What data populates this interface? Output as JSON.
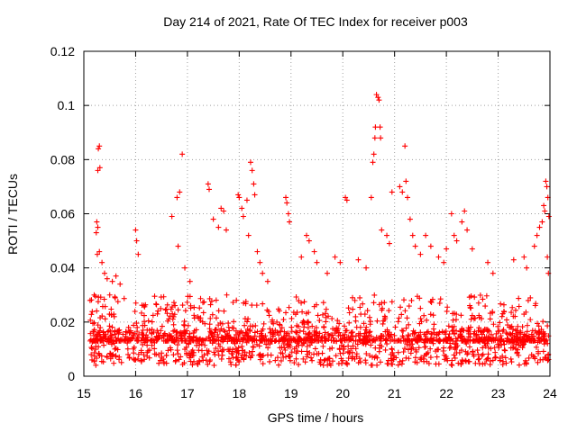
{
  "chart_data": {
    "type": "scatter",
    "title": "Day 214 of 2021, Rate Of TEC Index for receiver p003",
    "xlabel": "GPS time / hours",
    "ylabel": "ROTI / TECUs",
    "xlim": [
      15,
      24
    ],
    "ylim": [
      0,
      0.12
    ],
    "xticks": [
      "15",
      "16",
      "17",
      "18",
      "19",
      "20",
      "21",
      "22",
      "23",
      "24"
    ],
    "yticks": [
      "0",
      "0.02",
      "0.04",
      "0.06",
      "0.08",
      "0.1",
      "0.12"
    ],
    "grid": true,
    "marker": "+",
    "color": "#ff0000",
    "series": [
      {
        "name": "ROTI",
        "points": [
          [
            15.3,
            0.085
          ],
          [
            15.28,
            0.084
          ],
          [
            15.27,
            0.076
          ],
          [
            15.31,
            0.077
          ],
          [
            15.25,
            0.057
          ],
          [
            15.27,
            0.055
          ],
          [
            15.24,
            0.053
          ],
          [
            15.26,
            0.045
          ],
          [
            15.3,
            0.046
          ],
          [
            15.35,
            0.042
          ],
          [
            15.4,
            0.038
          ],
          [
            15.45,
            0.036
          ],
          [
            15.55,
            0.035
          ],
          [
            15.62,
            0.037
          ],
          [
            15.7,
            0.034
          ],
          [
            15.12,
            0.028
          ],
          [
            15.2,
            0.03
          ],
          [
            15.5,
            0.03
          ],
          [
            16.0,
            0.054
          ],
          [
            16.02,
            0.05
          ],
          [
            16.05,
            0.045
          ],
          [
            16.7,
            0.059
          ],
          [
            16.8,
            0.066
          ],
          [
            16.85,
            0.068
          ],
          [
            16.9,
            0.082
          ],
          [
            16.82,
            0.048
          ],
          [
            16.95,
            0.04
          ],
          [
            17.05,
            0.035
          ],
          [
            17.4,
            0.071
          ],
          [
            17.42,
            0.069
          ],
          [
            17.5,
            0.058
          ],
          [
            17.6,
            0.055
          ],
          [
            17.65,
            0.062
          ],
          [
            17.7,
            0.061
          ],
          [
            17.75,
            0.054
          ],
          [
            17.98,
            0.067
          ],
          [
            18.0,
            0.066
          ],
          [
            18.05,
            0.062
          ],
          [
            18.08,
            0.059
          ],
          [
            18.15,
            0.065
          ],
          [
            18.22,
            0.079
          ],
          [
            18.25,
            0.076
          ],
          [
            18.28,
            0.071
          ],
          [
            18.3,
            0.067
          ],
          [
            18.18,
            0.052
          ],
          [
            18.35,
            0.046
          ],
          [
            18.4,
            0.042
          ],
          [
            18.45,
            0.038
          ],
          [
            18.55,
            0.035
          ],
          [
            18.9,
            0.066
          ],
          [
            18.92,
            0.064
          ],
          [
            18.95,
            0.06
          ],
          [
            18.97,
            0.057
          ],
          [
            19.2,
            0.044
          ],
          [
            19.3,
            0.052
          ],
          [
            19.35,
            0.05
          ],
          [
            19.45,
            0.046
          ],
          [
            19.5,
            0.042
          ],
          [
            19.7,
            0.038
          ],
          [
            19.85,
            0.044
          ],
          [
            19.95,
            0.042
          ],
          [
            20.05,
            0.066
          ],
          [
            20.08,
            0.065
          ],
          [
            20.3,
            0.043
          ],
          [
            20.45,
            0.04
          ],
          [
            20.55,
            0.066
          ],
          [
            20.58,
            0.079
          ],
          [
            20.6,
            0.082
          ],
          [
            20.62,
            0.088
          ],
          [
            20.63,
            0.092
          ],
          [
            20.65,
            0.104
          ],
          [
            20.68,
            0.103
          ],
          [
            20.7,
            0.102
          ],
          [
            20.72,
            0.092
          ],
          [
            20.73,
            0.088
          ],
          [
            20.75,
            0.054
          ],
          [
            20.85,
            0.052
          ],
          [
            20.9,
            0.049
          ],
          [
            20.95,
            0.068
          ],
          [
            21.1,
            0.07
          ],
          [
            21.15,
            0.068
          ],
          [
            21.2,
            0.085
          ],
          [
            21.22,
            0.072
          ],
          [
            21.25,
            0.066
          ],
          [
            21.3,
            0.058
          ],
          [
            21.35,
            0.052
          ],
          [
            21.4,
            0.048
          ],
          [
            21.5,
            0.045
          ],
          [
            21.6,
            0.052
          ],
          [
            21.7,
            0.048
          ],
          [
            21.85,
            0.044
          ],
          [
            21.95,
            0.042
          ],
          [
            22.0,
            0.047
          ],
          [
            22.1,
            0.06
          ],
          [
            22.15,
            0.052
          ],
          [
            22.2,
            0.05
          ],
          [
            22.3,
            0.057
          ],
          [
            22.35,
            0.061
          ],
          [
            22.4,
            0.054
          ],
          [
            22.5,
            0.047
          ],
          [
            22.8,
            0.042
          ],
          [
            22.9,
            0.038
          ],
          [
            23.3,
            0.043
          ],
          [
            23.5,
            0.044
          ],
          [
            23.55,
            0.04
          ],
          [
            23.7,
            0.048
          ],
          [
            23.75,
            0.052
          ],
          [
            23.8,
            0.055
          ],
          [
            23.85,
            0.057
          ],
          [
            23.88,
            0.063
          ],
          [
            23.9,
            0.061
          ],
          [
            23.92,
            0.072
          ],
          [
            23.94,
            0.07
          ],
          [
            23.96,
            0.066
          ],
          [
            23.98,
            0.059
          ],
          [
            23.95,
            0.044
          ],
          [
            23.97,
            0.038
          ]
        ],
        "bulk_band": {
          "x_range": [
            15.12,
            23.98
          ],
          "y_range": [
            0.004,
            0.03
          ],
          "point_count": 1800,
          "typical_level": 0.013
        }
      }
    ]
  }
}
